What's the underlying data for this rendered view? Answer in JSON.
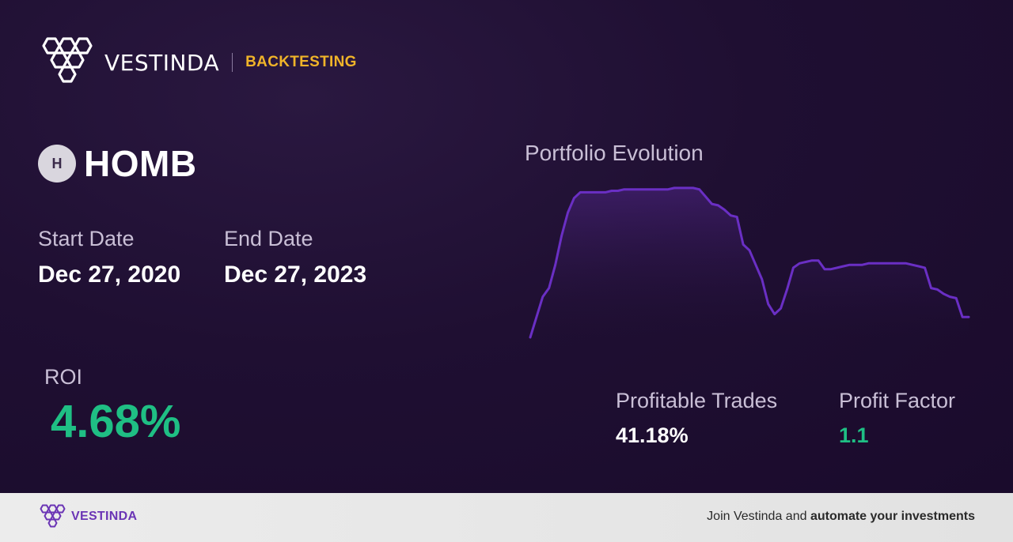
{
  "brand": {
    "name": "VESTINDA",
    "section": "BACKTESTING"
  },
  "ticker": {
    "badge": "H",
    "symbol": "HOMB"
  },
  "dates": {
    "start_label": "Start Date",
    "start_value": "Dec 27, 2020",
    "end_label": "End Date",
    "end_value": "Dec 27, 2023"
  },
  "roi": {
    "label": "ROI",
    "value": "4.68%"
  },
  "chart": {
    "title": "Portfolio Evolution"
  },
  "chart_data": {
    "type": "area",
    "title": "Portfolio Evolution",
    "x": [
      0,
      1,
      2,
      3,
      4,
      5,
      6,
      7,
      8,
      9,
      10,
      11,
      12,
      13,
      14,
      15,
      16,
      17,
      18,
      19,
      20,
      21,
      22,
      23,
      24,
      25,
      26,
      27,
      28,
      29,
      30,
      31,
      32,
      33,
      34,
      35,
      36,
      37,
      38,
      39,
      40,
      41,
      42,
      43,
      44,
      45,
      46,
      47,
      48,
      49,
      50,
      51,
      52,
      53,
      54,
      55,
      56,
      57,
      58,
      59,
      60,
      61,
      62,
      63,
      64,
      65,
      66,
      67,
      68,
      69,
      70
    ],
    "values": [
      0.0,
      0.14,
      0.28,
      0.34,
      0.5,
      0.7,
      0.86,
      0.96,
      1.0,
      1.0,
      1.0,
      1.0,
      1.0,
      1.01,
      1.01,
      1.02,
      1.02,
      1.02,
      1.02,
      1.02,
      1.02,
      1.02,
      1.02,
      1.03,
      1.03,
      1.03,
      1.03,
      1.02,
      0.97,
      0.92,
      0.91,
      0.88,
      0.84,
      0.83,
      0.64,
      0.6,
      0.5,
      0.4,
      0.23,
      0.16,
      0.2,
      0.33,
      0.48,
      0.51,
      0.52,
      0.53,
      0.53,
      0.47,
      0.47,
      0.48,
      0.49,
      0.5,
      0.5,
      0.5,
      0.51,
      0.51,
      0.51,
      0.51,
      0.51,
      0.51,
      0.51,
      0.5,
      0.49,
      0.48,
      0.34,
      0.33,
      0.3,
      0.28,
      0.27,
      0.14,
      0.14
    ],
    "color": "#6a2fc4",
    "ylim": [
      0,
      1.1
    ],
    "grid": false
  },
  "stats": {
    "profitable_trades_label": "Profitable Trades",
    "profitable_trades_value": "41.18%",
    "profit_factor_label": "Profit Factor",
    "profit_factor_value": "1.1"
  },
  "colors": {
    "accent": "#f0b429",
    "positive": "#1fbf84",
    "line": "#6a2fc4",
    "brand_purple": "#6b35b5"
  },
  "footer": {
    "brand": "VESTINDA",
    "cta_prefix": "Join Vestinda and ",
    "cta_bold": "automate your investments"
  }
}
